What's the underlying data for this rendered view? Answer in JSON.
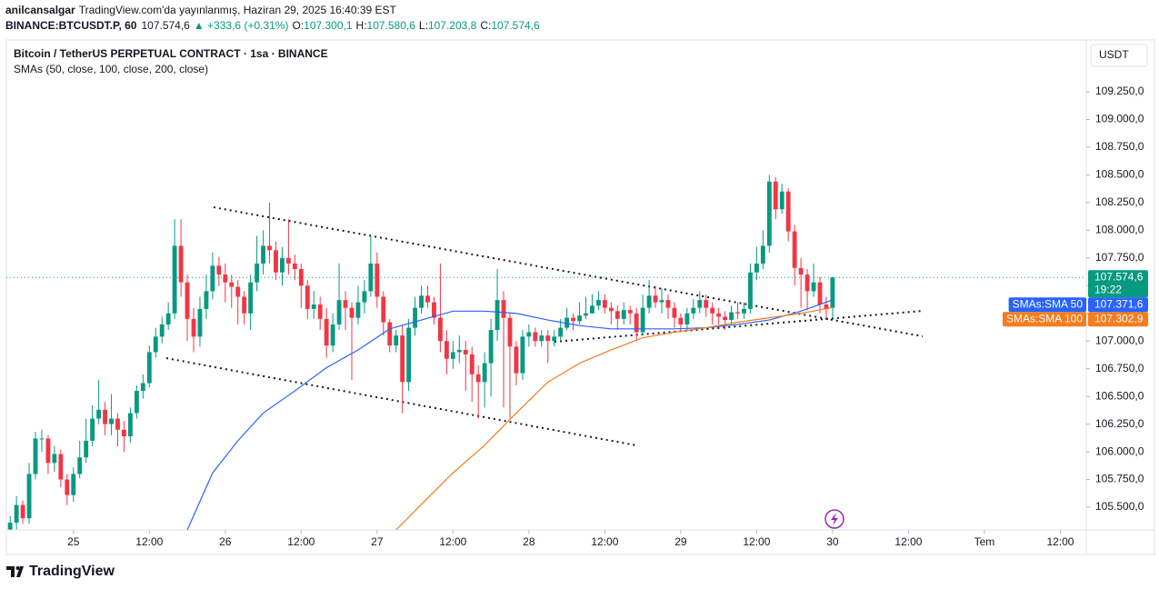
{
  "header": {
    "author": "anilcansalgar",
    "published": "TradingView.com'da yayınlanmış, Haziran 29, 2025 16:40:39 EST",
    "symbol": "BINANCE:BTCUSDT.P, 60",
    "price": "107.574,6",
    "change": "▲ +333,6 (+0.31%)",
    "ohlc": [
      {
        "key": "O:",
        "value": "107.300,1"
      },
      {
        "key": "H:",
        "value": "107.580,6"
      },
      {
        "key": "L:",
        "value": "107.203,8"
      },
      {
        "key": "C:",
        "value": "107.574,6"
      }
    ]
  },
  "footer": "TradingView",
  "chart_data": {
    "type": "candlestick",
    "title": "Bitcoin / TetherUS PERPETUAL CONTRACT · 1sa · BINANCE",
    "subtitle": "SMAs (50, close, 100, close, 200, close)",
    "currency": "USDT",
    "up_color": "#089981",
    "down_color": "#f23645",
    "xlim": [
      -0.6,
      170.1
    ],
    "ylim": [
      105295,
      109718
    ],
    "xticks": [
      {
        "value": 10,
        "label": "25"
      },
      {
        "value": 22,
        "label": "12:00"
      },
      {
        "value": 34,
        "label": "26"
      },
      {
        "value": 46,
        "label": "12:00"
      },
      {
        "value": 58,
        "label": "27"
      },
      {
        "value": 70,
        "label": "12:00"
      },
      {
        "value": 82,
        "label": "28"
      },
      {
        "value": 94,
        "label": "12:00"
      },
      {
        "value": 106,
        "label": "29"
      },
      {
        "value": 118,
        "label": "12:00"
      },
      {
        "value": 130,
        "label": "30"
      },
      {
        "value": 142,
        "label": "12:00"
      },
      {
        "value": 154,
        "label": "Tem"
      },
      {
        "value": 166,
        "label": "12:00"
      }
    ],
    "yticks": [
      {
        "value": 105500,
        "label": "105.500,0"
      },
      {
        "value": 105750,
        "label": "105.750,0"
      },
      {
        "value": 106000,
        "label": "106.000,0"
      },
      {
        "value": 106250,
        "label": "106.250,0"
      },
      {
        "value": 106500,
        "label": "106.500,0"
      },
      {
        "value": 106750,
        "label": "106.750,0"
      },
      {
        "value": 107000,
        "label": "107.000,0"
      },
      {
        "value": 107250,
        "label": "107.250,0"
      },
      {
        "value": 107500,
        "label": "107.500,0"
      },
      {
        "value": 107750,
        "label": "107.750,0"
      },
      {
        "value": 108000,
        "label": "108.000,0"
      },
      {
        "value": 108250,
        "label": "108.250,0"
      },
      {
        "value": 108500,
        "label": "108.500,0"
      },
      {
        "value": 108750,
        "label": "108.750,0"
      },
      {
        "value": 109000,
        "label": "109.000,0"
      },
      {
        "value": 109250,
        "label": "109.250,0"
      }
    ],
    "grid": false,
    "candles": {
      "open": [
        105300,
        105360,
        105520,
        105400,
        105800,
        106120,
        106120,
        105900,
        105980,
        105750,
        105610,
        105800,
        105950,
        106100,
        106300,
        106380,
        106250,
        106300,
        106200,
        106140,
        106350,
        106550,
        106620,
        106900,
        107040,
        107150,
        107250,
        107860,
        107530,
        107200,
        107040,
        107290,
        107450,
        107680,
        107600,
        107530,
        107490,
        107400,
        107250,
        107530,
        107700,
        107860,
        107820,
        107620,
        107750,
        107700,
        107650,
        107500,
        107290,
        107330,
        107200,
        106960,
        107150,
        107370,
        107300,
        107210,
        107350,
        107450,
        107700,
        107400,
        107170,
        106960,
        107050,
        106630,
        107120,
        107300,
        107410,
        107350,
        107210,
        107000,
        106840,
        106900,
        106920,
        106880,
        106700,
        106630,
        106800,
        107100,
        107370,
        107210,
        106950,
        106710,
        107040,
        107080,
        107000,
        107050,
        107000,
        107040,
        107120,
        107210,
        107180,
        107230,
        107250,
        107320,
        107370,
        107300,
        107270,
        107200,
        107280,
        107250,
        107080,
        107300,
        107410,
        107350,
        107370,
        107300,
        107210,
        107150,
        107250,
        107300,
        107370,
        107300,
        107250,
        107220,
        107190,
        107260,
        107250,
        107290,
        107620,
        107700,
        107860,
        108440,
        108190,
        108350,
        107990,
        107660,
        107600,
        107450,
        107530,
        107330,
        107300.1
      ],
      "high": [
        105420,
        105600,
        105560,
        105900,
        106180,
        106200,
        106150,
        106050,
        106020,
        105800,
        105860,
        106100,
        106300,
        106420,
        106650,
        106450,
        106520,
        106350,
        106280,
        106400,
        106600,
        106700,
        106960,
        107120,
        107220,
        107350,
        108100,
        108100,
        107600,
        107300,
        107400,
        107600,
        107800,
        107760,
        107700,
        107600,
        107550,
        107450,
        107600,
        107950,
        108000,
        108250,
        107900,
        107850,
        108100,
        107780,
        107700,
        107550,
        107450,
        107400,
        107300,
        107250,
        107700,
        107450,
        107350,
        107500,
        107550,
        107950,
        107800,
        107450,
        107200,
        107100,
        107150,
        107200,
        107400,
        107500,
        107500,
        107400,
        107700,
        107100,
        107000,
        107050,
        107000,
        106950,
        106780,
        106900,
        107200,
        107650,
        107450,
        107250,
        107000,
        107100,
        107150,
        107120,
        107100,
        107100,
        107100,
        107200,
        107300,
        107250,
        107350,
        107400,
        107420,
        107450,
        107420,
        107350,
        107320,
        107350,
        107320,
        107300,
        107420,
        107550,
        107500,
        107480,
        107420,
        107350,
        107250,
        107300,
        107380,
        107450,
        107420,
        107350,
        107300,
        107270,
        107320,
        107350,
        107350,
        107700,
        107850,
        108000,
        108500,
        108480,
        108420,
        108380,
        108050,
        107750,
        107650,
        107700,
        107580,
        107400,
        107580.6
      ],
      "low": [
        105250,
        105300,
        105350,
        105350,
        105750,
        106000,
        105800,
        105820,
        105680,
        105520,
        105550,
        105760,
        105900,
        106050,
        106250,
        106150,
        106150,
        106050,
        106000,
        106080,
        106300,
        106480,
        106580,
        106850,
        106980,
        107100,
        107200,
        107400,
        107000,
        106900,
        106950,
        107200,
        107380,
        107500,
        107350,
        107300,
        107150,
        107150,
        107100,
        107450,
        107600,
        107700,
        107550,
        107500,
        107600,
        107550,
        107300,
        107200,
        107200,
        107100,
        106850,
        106900,
        107100,
        107100,
        106650,
        107150,
        107250,
        107400,
        107300,
        107050,
        106900,
        106900,
        106350,
        106550,
        107050,
        107250,
        107300,
        107150,
        106900,
        106700,
        106750,
        106800,
        106550,
        106450,
        106300,
        106400,
        106500,
        107000,
        106400,
        106300,
        106600,
        106650,
        106950,
        106950,
        106950,
        106800,
        106950,
        107000,
        107100,
        107100,
        107150,
        107200,
        107250,
        107280,
        107250,
        107150,
        107100,
        107150,
        107150,
        107000,
        107050,
        107250,
        107300,
        107250,
        107200,
        107120,
        107080,
        107100,
        107200,
        107250,
        107220,
        107150,
        107150,
        107100,
        107150,
        107200,
        107200,
        107250,
        107550,
        107650,
        107800,
        108100,
        108150,
        107900,
        107500,
        107300,
        107280,
        107400,
        107250,
        107200,
        107203.8
      ],
      "close": [
        105360,
        105520,
        105400,
        105800,
        106120,
        106120,
        105900,
        105980,
        105750,
        105610,
        105800,
        105950,
        106100,
        106300,
        106380,
        106250,
        106300,
        106200,
        106140,
        106350,
        106550,
        106620,
        106900,
        107040,
        107150,
        107250,
        107860,
        107530,
        107200,
        107040,
        107290,
        107450,
        107680,
        107600,
        107530,
        107490,
        107400,
        107250,
        107530,
        107700,
        107860,
        107820,
        107620,
        107750,
        107700,
        107650,
        107500,
        107290,
        107330,
        107200,
        106960,
        107150,
        107370,
        107300,
        107210,
        107350,
        107450,
        107700,
        107400,
        107170,
        106960,
        107050,
        106630,
        107120,
        107300,
        107410,
        107350,
        107210,
        107000,
        106840,
        106900,
        106920,
        106880,
        106700,
        106630,
        106800,
        107100,
        107370,
        107210,
        106950,
        106710,
        107040,
        107080,
        107000,
        107050,
        107000,
        107040,
        107120,
        107210,
        107180,
        107230,
        107250,
        107320,
        107370,
        107300,
        107270,
        107200,
        107280,
        107250,
        107080,
        107300,
        107410,
        107350,
        107370,
        107300,
        107210,
        107150,
        107250,
        107300,
        107370,
        107300,
        107250,
        107220,
        107190,
        107260,
        107250,
        107290,
        107620,
        107700,
        107860,
        108440,
        108190,
        108350,
        107990,
        107660,
        107600,
        107450,
        107530,
        107330,
        107290,
        107574.6
      ]
    },
    "last_price": {
      "value": 107574.6,
      "label": "107.574,6",
      "countdown": "19:22",
      "color": "#089981"
    },
    "lines": [
      {
        "name": "SMAs:SMA 50",
        "color": "#2962ff",
        "last_label": "107.371,6",
        "x": [
          28,
          32,
          36,
          40,
          45,
          50,
          55,
          60,
          65,
          70,
          75,
          80,
          85,
          90,
          95,
          100,
          105,
          110,
          115,
          120,
          125,
          130
        ],
        "values": [
          105295,
          105810,
          106100,
          106350,
          106550,
          106760,
          106920,
          107110,
          107190,
          107270,
          107270,
          107250,
          107190,
          107140,
          107110,
          107110,
          107110,
          107120,
          107150,
          107190,
          107270,
          107371.6
        ]
      },
      {
        "name": "SMAs:SMA 100",
        "color": "#f57c1f",
        "last_label": "107.302,9",
        "x": [
          61,
          65,
          70,
          75,
          80,
          85,
          90,
          95,
          100,
          105,
          110,
          115,
          120,
          125,
          130
        ],
        "values": [
          105295,
          105525,
          105810,
          106060,
          106350,
          106630,
          106800,
          106920,
          107030,
          107080,
          107120,
          107170,
          107210,
          107250,
          107302.9
        ]
      }
    ]
  }
}
